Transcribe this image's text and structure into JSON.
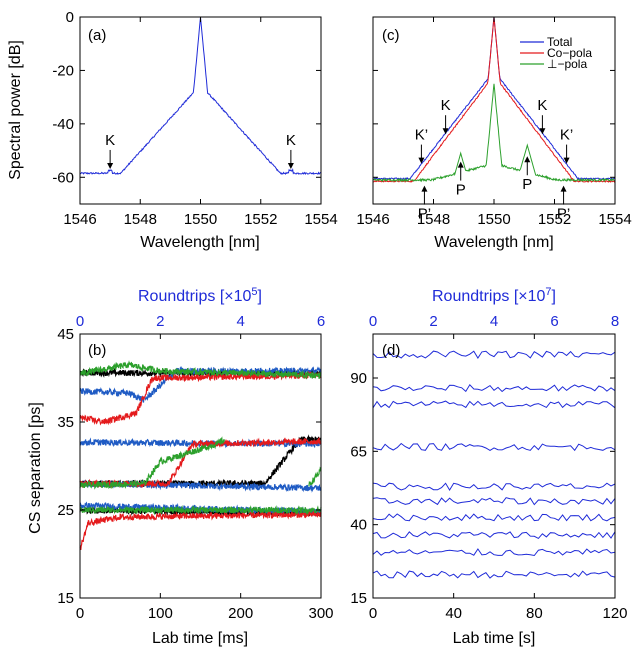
{
  "chart_data": [
    {
      "id": "a",
      "type": "line",
      "panel_label": "(a)",
      "xlabel": "Wavelength [nm]",
      "ylabel": "Spectral power [dB]",
      "xlim": [
        1546,
        1554
      ],
      "ylim": [
        -70,
        0
      ],
      "xticks": [
        1546,
        1548,
        1550,
        1552,
        1554
      ],
      "yticks": [
        0,
        -20,
        -40,
        -60
      ],
      "color": "#1f2bd8",
      "spectrum": {
        "center": 1550,
        "peak": 0,
        "floor": -58.5,
        "base_level": -26,
        "slope_db_per_nm": 12.5
      },
      "annotations": [
        {
          "text": "K",
          "x": 1547.0,
          "y": -58
        },
        {
          "text": "K",
          "x": 1553.0,
          "y": -58
        }
      ]
    },
    {
      "id": "c",
      "type": "line",
      "panel_label": "(c)",
      "xlabel": "Wavelength [nm]",
      "xlim": [
        1546,
        1554
      ],
      "ylim": [
        -70,
        0
      ],
      "xticks": [
        1546,
        1548,
        1550,
        1552,
        1554
      ],
      "yticks": [
        0,
        -20,
        -40,
        -60
      ],
      "series": [
        {
          "name": "Total",
          "color": "#1f2bd8",
          "peak": 0,
          "floor": -60.5,
          "base_level": -21,
          "slope_db_per_nm": 14.5
        },
        {
          "name": "Co−pola",
          "color": "#e41a1c",
          "peak": 0,
          "floor": -61.5,
          "base_level": -22.5,
          "slope_db_per_nm": 15
        },
        {
          "name": "⊥−pola",
          "color": "#2ca02c",
          "peak": -25,
          "floor": -61,
          "base_level": -55,
          "slope_db_per_nm": 3
        }
      ],
      "legend_position": "top-right",
      "annotations": [
        {
          "text": "K",
          "x": 1548.4,
          "y": -45
        },
        {
          "text": "K",
          "x": 1551.6,
          "y": -45
        },
        {
          "text": "K’",
          "x": 1547.6,
          "y": -56
        },
        {
          "text": "K’",
          "x": 1552.4,
          "y": -56
        },
        {
          "text": "P",
          "x": 1548.9,
          "y": -53
        },
        {
          "text": "P",
          "x": 1551.1,
          "y": -51
        },
        {
          "text": "P’",
          "x": 1547.7,
          "y": -62
        },
        {
          "text": "P’",
          "x": 1552.3,
          "y": -62
        }
      ]
    },
    {
      "id": "b",
      "type": "line",
      "panel_label": "(b)",
      "xlabel": "Lab time [ms]",
      "ylabel": "CS separation [ps]",
      "top_xlabel": "Roundtrips [×10",
      "top_xlabel_exp": "5",
      "top_xlabel_end": "]",
      "xlim": [
        0,
        300
      ],
      "ylim": [
        15,
        45
      ],
      "xticks": [
        0,
        100,
        200,
        300
      ],
      "yticks": [
        15,
        25,
        35,
        45
      ],
      "top_xticks": [
        0,
        2,
        4,
        6
      ],
      "series": [
        {
          "name": "",
          "color": "#000000",
          "tracks": [
            {
              "pts": [
                [
                  0,
                  40.6
                ],
                [
                  300,
                  40.5
                ]
              ]
            },
            {
              "pts": [
                [
                  0,
                  28
                ],
                [
                  230,
                  28
                ],
                [
                  265,
                  32
                ],
                [
                  275,
                  33
                ],
                [
                  300,
                  33
                ]
              ]
            },
            {
              "pts": [
                [
                  0,
                  25
                ],
                [
                  300,
                  24.6
                ]
              ]
            }
          ]
        },
        {
          "name": "",
          "color": "#1f5bc4",
          "tracks": [
            {
              "pts": [
                [
                  0,
                  38.5
                ],
                [
                  60,
                  38.3
                ],
                [
                  80,
                  37.5
                ],
                [
                  120,
                  40.8
                ],
                [
                  300,
                  40.8
                ]
              ]
            },
            {
              "pts": [
                [
                  0,
                  32.7
                ],
                [
                  300,
                  32.5
                ]
              ]
            },
            {
              "pts": [
                [
                  0,
                  28
                ],
                [
                  300,
                  27.5
                ]
              ]
            },
            {
              "pts": [
                [
                  0,
                  25.5
                ],
                [
                  300,
                  24.8
                ]
              ]
            }
          ]
        },
        {
          "name": "",
          "color": "#e41a1c",
          "tracks": [
            {
              "pts": [
                [
                  0,
                  35.5
                ],
                [
                  30,
                  35
                ],
                [
                  70,
                  36
                ],
                [
                  90,
                  40
                ],
                [
                  300,
                  40.3
                ]
              ]
            },
            {
              "pts": [
                [
                  0,
                  28
                ],
                [
                  110,
                  28
                ],
                [
                  140,
                  32.5
                ],
                [
                  300,
                  32.8
                ]
              ]
            },
            {
              "pts": [
                [
                  0,
                  20.5
                ],
                [
                  10,
                  23.5
                ],
                [
                  50,
                  24.2
                ],
                [
                  300,
                  24.5
                ]
              ]
            }
          ]
        },
        {
          "name": "",
          "color": "#2ca02c",
          "tracks": [
            {
              "pts": [
                [
                  0,
                  40.5
                ],
                [
                  60,
                  41.5
                ],
                [
                  100,
                  40.8
                ],
                [
                  300,
                  40.3
                ]
              ]
            },
            {
              "pts": [
                [
                  0,
                  27.8
                ],
                [
                  80,
                  28
                ],
                [
                  100,
                  30.5
                ],
                [
                  170,
                  32.5
                ],
                [
                  180,
                  33
                ]
              ]
            },
            {
              "pts": [
                [
                  285,
                  27.8
                ],
                [
                  300,
                  29.5
                ]
              ]
            },
            {
              "pts": [
                [
                  0,
                  25
                ],
                [
                  300,
                  25
                ]
              ]
            }
          ]
        }
      ]
    },
    {
      "id": "d",
      "type": "line",
      "panel_label": "(d)",
      "xlabel": "Lab time [s]",
      "top_xlabel": "Roundtrips [×10",
      "top_xlabel_exp": "7",
      "top_xlabel_end": "]",
      "xlim": [
        0,
        120
      ],
      "ylim": [
        15,
        105
      ],
      "xticks": [
        0,
        40,
        80,
        120
      ],
      "yticks": [
        15,
        40,
        65,
        90
      ],
      "top_xticks": [
        0,
        2,
        4,
        6,
        8
      ],
      "color": "#1f2bd8",
      "levels": [
        98,
        86.5,
        81,
        66.5,
        53,
        48,
        42.5,
        36.5,
        30.5,
        23
      ]
    }
  ]
}
